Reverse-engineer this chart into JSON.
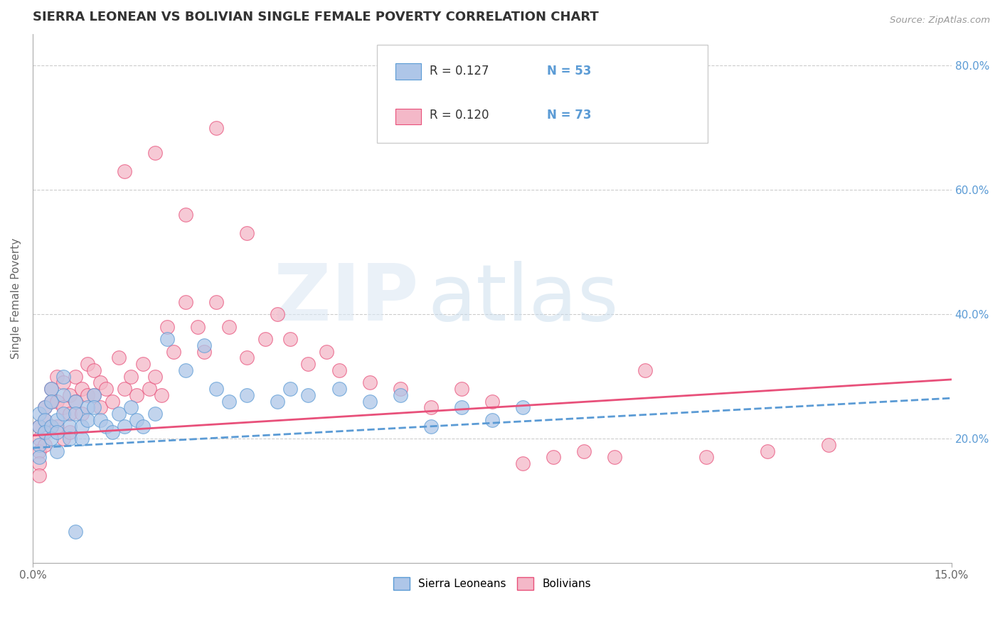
{
  "title": "SIERRA LEONEAN VS BOLIVIAN SINGLE FEMALE POVERTY CORRELATION CHART",
  "source": "Source: ZipAtlas.com",
  "ylabel": "Single Female Poverty",
  "xlim": [
    0,
    0.15
  ],
  "ylim": [
    0,
    0.85
  ],
  "xticks": [
    0.0,
    0.15
  ],
  "xtick_labels": [
    "0.0%",
    "15.0%"
  ],
  "yticks": [
    0.0,
    0.2,
    0.4,
    0.6,
    0.8
  ],
  "ytick_labels_right": [
    "",
    "20.0%",
    "40.0%",
    "60.0%",
    "80.0%"
  ],
  "legend_r1": "R = 0.127",
  "legend_n1": "N = 53",
  "legend_r2": "R = 0.120",
  "legend_n2": "N = 73",
  "sierra_color": "#aec6e8",
  "bolivia_color": "#f4b8c8",
  "sierra_line_color": "#5b9bd5",
  "bolivia_line_color": "#e8507a",
  "grid_color": "#cccccc",
  "sierra_x": [
    0.001,
    0.001,
    0.001,
    0.001,
    0.002,
    0.002,
    0.002,
    0.003,
    0.003,
    0.003,
    0.003,
    0.004,
    0.004,
    0.004,
    0.005,
    0.005,
    0.005,
    0.006,
    0.006,
    0.007,
    0.007,
    0.008,
    0.008,
    0.009,
    0.009,
    0.01,
    0.01,
    0.011,
    0.012,
    0.013,
    0.014,
    0.015,
    0.016,
    0.017,
    0.018,
    0.02,
    0.022,
    0.025,
    0.028,
    0.03,
    0.032,
    0.035,
    0.04,
    0.042,
    0.045,
    0.05,
    0.055,
    0.06,
    0.065,
    0.07,
    0.075,
    0.08,
    0.007
  ],
  "sierra_y": [
    0.22,
    0.24,
    0.19,
    0.17,
    0.25,
    0.23,
    0.21,
    0.28,
    0.26,
    0.22,
    0.2,
    0.23,
    0.21,
    0.18,
    0.3,
    0.27,
    0.24,
    0.22,
    0.2,
    0.26,
    0.24,
    0.22,
    0.2,
    0.25,
    0.23,
    0.27,
    0.25,
    0.23,
    0.22,
    0.21,
    0.24,
    0.22,
    0.25,
    0.23,
    0.22,
    0.24,
    0.36,
    0.31,
    0.35,
    0.28,
    0.26,
    0.27,
    0.26,
    0.28,
    0.27,
    0.28,
    0.26,
    0.27,
    0.22,
    0.25,
    0.23,
    0.25,
    0.05
  ],
  "bolivia_x": [
    0.001,
    0.001,
    0.001,
    0.001,
    0.001,
    0.002,
    0.002,
    0.002,
    0.002,
    0.003,
    0.003,
    0.003,
    0.004,
    0.004,
    0.004,
    0.005,
    0.005,
    0.005,
    0.006,
    0.006,
    0.006,
    0.007,
    0.007,
    0.008,
    0.008,
    0.009,
    0.009,
    0.01,
    0.01,
    0.011,
    0.011,
    0.012,
    0.013,
    0.014,
    0.015,
    0.016,
    0.017,
    0.018,
    0.019,
    0.02,
    0.021,
    0.022,
    0.023,
    0.025,
    0.027,
    0.028,
    0.03,
    0.032,
    0.035,
    0.038,
    0.04,
    0.042,
    0.045,
    0.048,
    0.05,
    0.055,
    0.06,
    0.065,
    0.07,
    0.075,
    0.08,
    0.085,
    0.09,
    0.095,
    0.1,
    0.11,
    0.12,
    0.13,
    0.015,
    0.02,
    0.025,
    0.03,
    0.035
  ],
  "bolivia_y": [
    0.22,
    0.2,
    0.18,
    0.16,
    0.14,
    0.25,
    0.23,
    0.21,
    0.19,
    0.28,
    0.26,
    0.22,
    0.3,
    0.26,
    0.22,
    0.29,
    0.25,
    0.2,
    0.27,
    0.24,
    0.21,
    0.3,
    0.26,
    0.28,
    0.24,
    0.32,
    0.27,
    0.31,
    0.27,
    0.29,
    0.25,
    0.28,
    0.26,
    0.33,
    0.28,
    0.3,
    0.27,
    0.32,
    0.28,
    0.3,
    0.27,
    0.38,
    0.34,
    0.42,
    0.38,
    0.34,
    0.42,
    0.38,
    0.33,
    0.36,
    0.4,
    0.36,
    0.32,
    0.34,
    0.31,
    0.29,
    0.28,
    0.25,
    0.28,
    0.26,
    0.16,
    0.17,
    0.18,
    0.17,
    0.31,
    0.17,
    0.18,
    0.19,
    0.63,
    0.66,
    0.56,
    0.7,
    0.53
  ]
}
